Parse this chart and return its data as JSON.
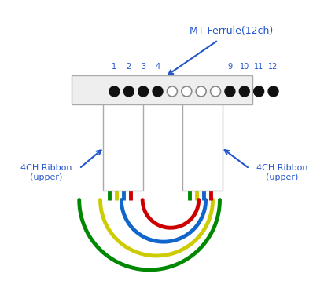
{
  "bg_color": "#ffffff",
  "label_color": "#2255cc",
  "ferrule_label": "MT Ferrule(12ch)",
  "ribbon_label": "4CH Ribbon\n(upper)",
  "pin_labels_left": [
    "1",
    "2",
    "3",
    "4"
  ],
  "pin_labels_right": [
    "9",
    "10",
    "11",
    "12"
  ],
  "wire_colors_left": [
    "#008800",
    "#cccc00",
    "#1166cc",
    "#cc0000"
  ],
  "wire_colors_right": [
    "#cc0000",
    "#1166cc",
    "#cccc00",
    "#008800"
  ],
  "arc_colors": [
    "#008800",
    "#cccc00",
    "#1166cc",
    "#cc0000"
  ],
  "figsize": [
    4.12,
    3.81
  ],
  "dpi": 100
}
